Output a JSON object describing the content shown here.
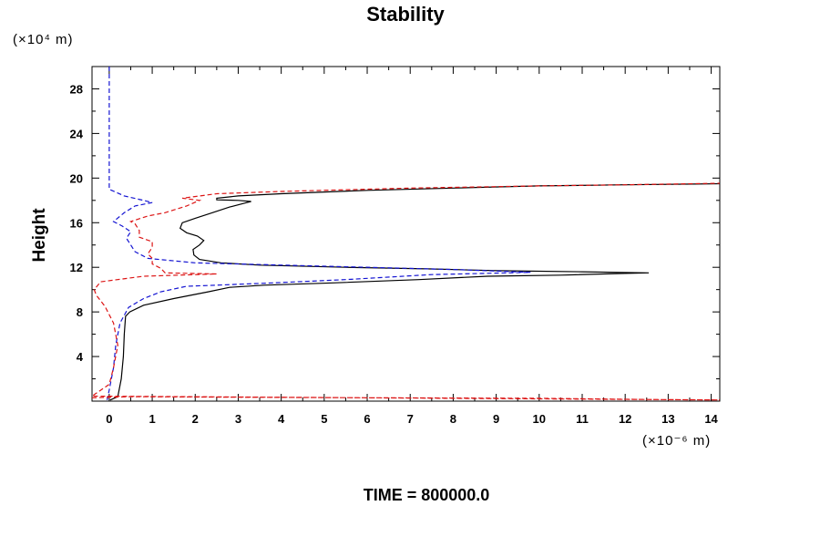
{
  "chart_data": {
    "type": "line",
    "title": "Stability",
    "xlabel": "",
    "ylabel": "Height",
    "x_unit": "(×10⁻⁶ m)",
    "y_unit": "(×10⁴ m)",
    "footer": "TIME = 800000.0",
    "xlim": [
      -0.4,
      14.2
    ],
    "ylim": [
      0,
      30
    ],
    "x_ticks": [
      0,
      1,
      2,
      3,
      4,
      5,
      6,
      7,
      8,
      9,
      10,
      11,
      12,
      13,
      14
    ],
    "y_ticks": [
      4,
      8,
      12,
      16,
      20,
      24,
      28
    ],
    "grid": false,
    "legend": "none",
    "series": [
      {
        "color": "#000000",
        "dash": "solid",
        "points": [
          [
            0.02,
            0.1
          ],
          [
            0.2,
            0.4
          ],
          [
            0.28,
            2
          ],
          [
            0.33,
            4
          ],
          [
            0.35,
            6
          ],
          [
            0.38,
            7.6
          ],
          [
            0.48,
            8
          ],
          [
            0.8,
            8.6
          ],
          [
            1.5,
            9.2
          ],
          [
            2.3,
            9.8
          ],
          [
            2.8,
            10.2
          ],
          [
            3.6,
            10.4
          ],
          [
            5.2,
            10.6
          ],
          [
            7.2,
            10.9
          ],
          [
            8.8,
            11.2
          ],
          [
            10.5,
            11.3
          ],
          [
            12.0,
            11.45
          ],
          [
            12.55,
            11.5
          ],
          [
            11.0,
            11.6
          ],
          [
            9.0,
            11.7
          ],
          [
            7.5,
            11.85
          ],
          [
            5.5,
            12.0
          ],
          [
            3.5,
            12.2
          ],
          [
            2.6,
            12.4
          ],
          [
            2.1,
            12.7
          ],
          [
            1.97,
            13.1
          ],
          [
            1.95,
            13.6
          ],
          [
            2.1,
            14.0
          ],
          [
            2.2,
            14.4
          ],
          [
            2.05,
            14.8
          ],
          [
            1.8,
            15.1
          ],
          [
            1.65,
            15.5
          ],
          [
            1.7,
            16.0
          ],
          [
            2.0,
            16.4
          ],
          [
            2.4,
            16.9
          ],
          [
            2.8,
            17.4
          ],
          [
            3.2,
            17.8
          ],
          [
            3.3,
            17.9
          ],
          [
            3.0,
            18.0
          ],
          [
            2.5,
            18.05
          ],
          [
            2.5,
            18.2
          ],
          [
            3.0,
            18.4
          ],
          [
            4.0,
            18.6
          ],
          [
            6.0,
            18.9
          ],
          [
            8.0,
            19.1
          ],
          [
            10.0,
            19.3
          ],
          [
            12.0,
            19.4
          ],
          [
            14.5,
            19.5
          ]
        ]
      },
      {
        "color": "#1414d2",
        "dash": "dashed",
        "points": [
          [
            0.0,
            30
          ],
          [
            0.0,
            19.0
          ],
          [
            0.35,
            18.4
          ],
          [
            0.8,
            18.0
          ],
          [
            1.0,
            17.8
          ],
          [
            0.6,
            17.5
          ],
          [
            0.35,
            16.9
          ],
          [
            0.1,
            16.1
          ],
          [
            0.3,
            15.7
          ],
          [
            0.5,
            15.2
          ],
          [
            0.4,
            14.6
          ],
          [
            0.5,
            14.0
          ],
          [
            0.6,
            13.4
          ],
          [
            0.9,
            12.8
          ],
          [
            2.0,
            12.4
          ],
          [
            5.0,
            12.1
          ],
          [
            8.0,
            11.8
          ],
          [
            9.8,
            11.55
          ],
          [
            7.5,
            11.35
          ],
          [
            5.5,
            10.9
          ],
          [
            3.8,
            10.6
          ],
          [
            2.5,
            10.4
          ],
          [
            1.8,
            10.3
          ],
          [
            1.2,
            9.8
          ],
          [
            0.8,
            9.2
          ],
          [
            0.45,
            8.4
          ],
          [
            0.25,
            7.0
          ],
          [
            0.15,
            5.0
          ],
          [
            0.1,
            3.0
          ],
          [
            0.0,
            1.0
          ],
          [
            -0.05,
            0.1
          ]
        ]
      },
      {
        "color": "#dc1414",
        "dash": "dashed",
        "points": [
          [
            -0.4,
            0.3
          ],
          [
            0.5,
            0.4
          ],
          [
            3.0,
            0.35
          ],
          [
            6.0,
            0.3
          ],
          [
            10.0,
            0.25
          ],
          [
            12.5,
            0.15
          ],
          [
            14.5,
            0.1
          ],
          [
            -0.4,
            0.45
          ],
          [
            0.0,
            1.5
          ],
          [
            0.1,
            3.0
          ],
          [
            0.2,
            5.0
          ],
          [
            0.1,
            7.0
          ],
          [
            -0.1,
            8.5
          ],
          [
            -0.3,
            9.5
          ],
          [
            -0.35,
            10.0
          ],
          [
            -0.2,
            10.7
          ],
          [
            0.8,
            11.2
          ],
          [
            2.5,
            11.4
          ],
          [
            1.3,
            11.5
          ],
          [
            1.2,
            11.9
          ],
          [
            1.0,
            12.3
          ],
          [
            1.0,
            12.8
          ],
          [
            0.9,
            13.2
          ],
          [
            1.0,
            13.8
          ],
          [
            1.0,
            14.3
          ],
          [
            0.7,
            14.7
          ],
          [
            0.7,
            15.3
          ],
          [
            0.6,
            15.9
          ],
          [
            0.5,
            16.1
          ],
          [
            0.9,
            16.6
          ],
          [
            1.3,
            16.9
          ],
          [
            1.8,
            17.5
          ],
          [
            2.1,
            18.0
          ],
          [
            1.7,
            18.2
          ],
          [
            2.5,
            18.6
          ],
          [
            4.0,
            18.8
          ],
          [
            7.0,
            19.1
          ],
          [
            10.0,
            19.3
          ],
          [
            12.0,
            19.4
          ],
          [
            14.5,
            19.55
          ]
        ]
      }
    ]
  }
}
